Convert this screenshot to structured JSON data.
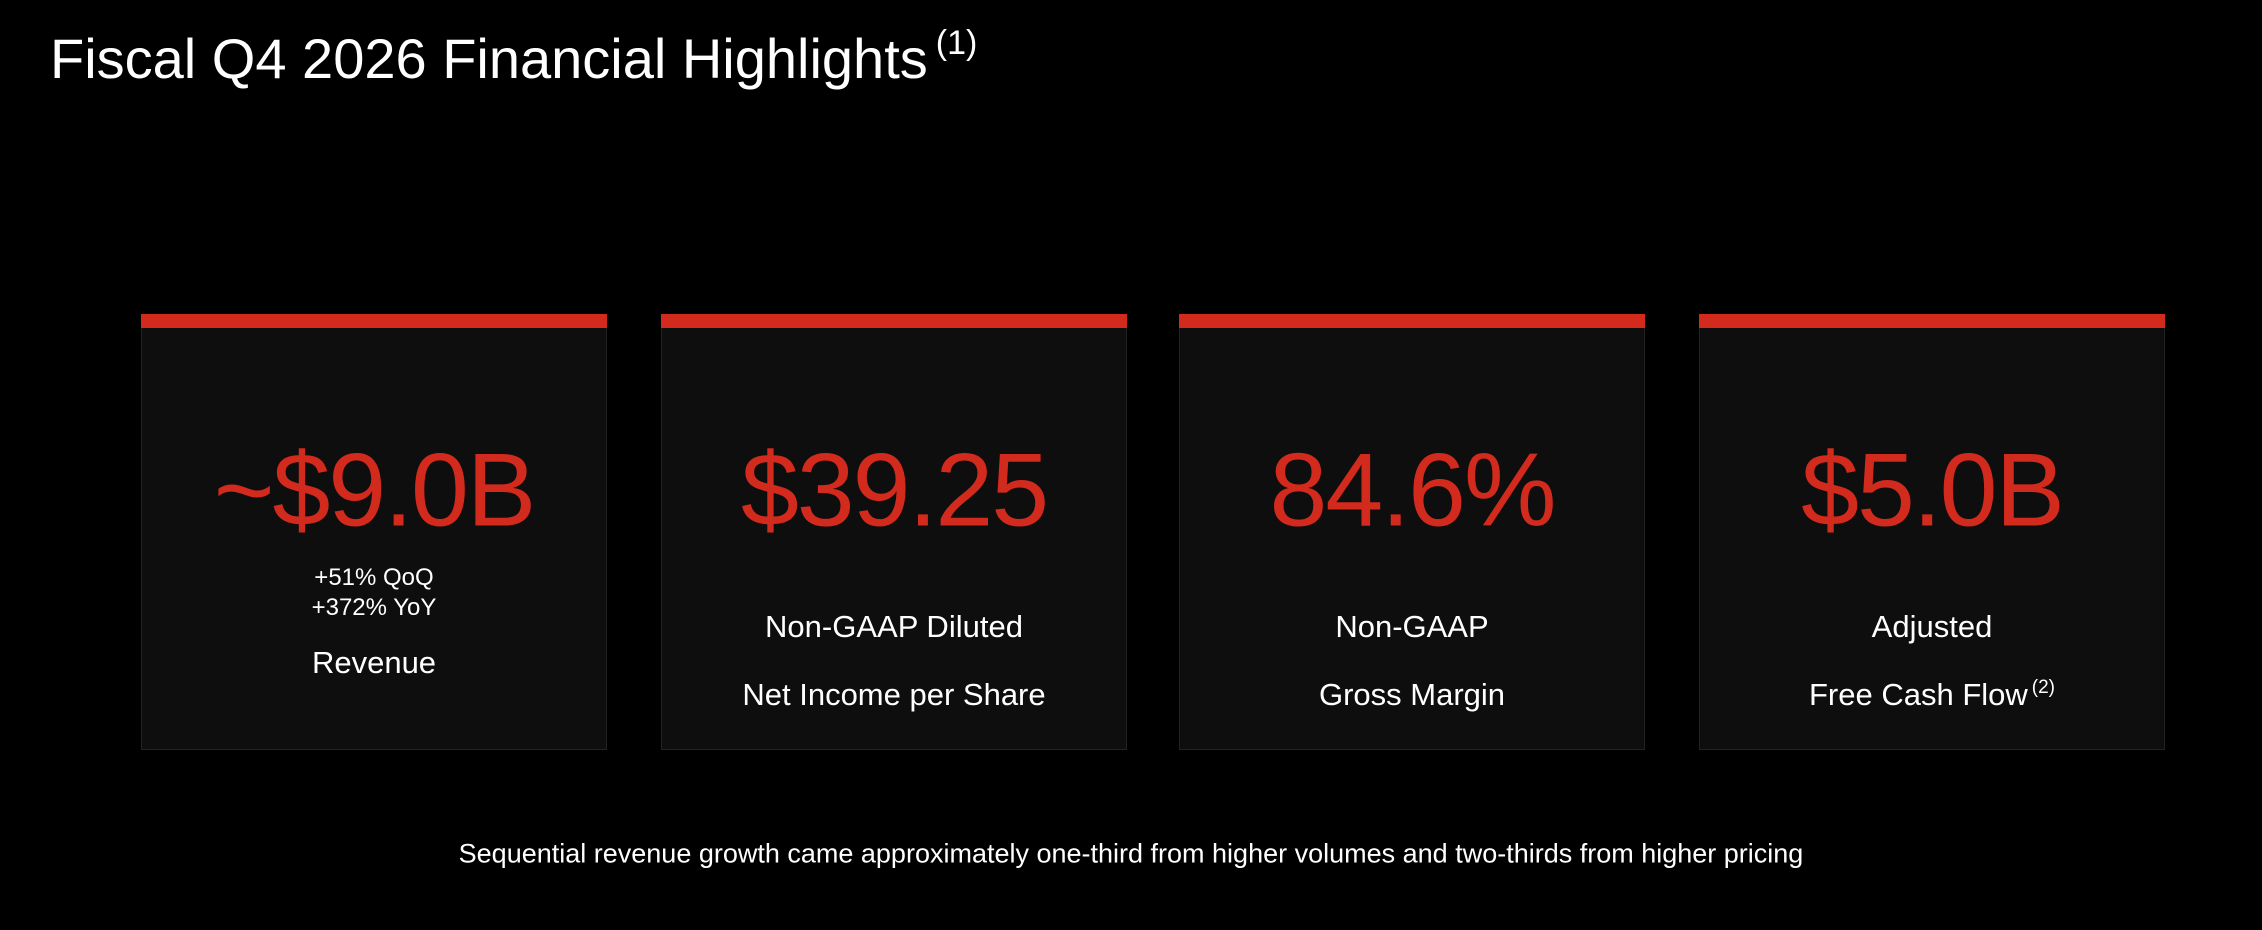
{
  "header": {
    "title": "Fiscal Q4 2026 Financial Highlights",
    "footnote": "(1)"
  },
  "cards": [
    {
      "value": "~$9.0B",
      "details": [
        "+51% QoQ",
        "+372% YoY"
      ],
      "label": [
        "Revenue"
      ]
    },
    {
      "value": "$39.25",
      "label": [
        "Non-GAAP Diluted",
        "Net Income per Share"
      ]
    },
    {
      "value": "84.6%",
      "label": [
        "Non-GAAP",
        "Gross Margin"
      ]
    },
    {
      "value": "$5.0B",
      "label": [
        "Adjusted",
        "Free Cash Flow"
      ],
      "footnote": "(2)"
    }
  ],
  "note": "Sequential revenue growth came approximately one-third from higher volumes and two-thirds from higher pricing"
}
